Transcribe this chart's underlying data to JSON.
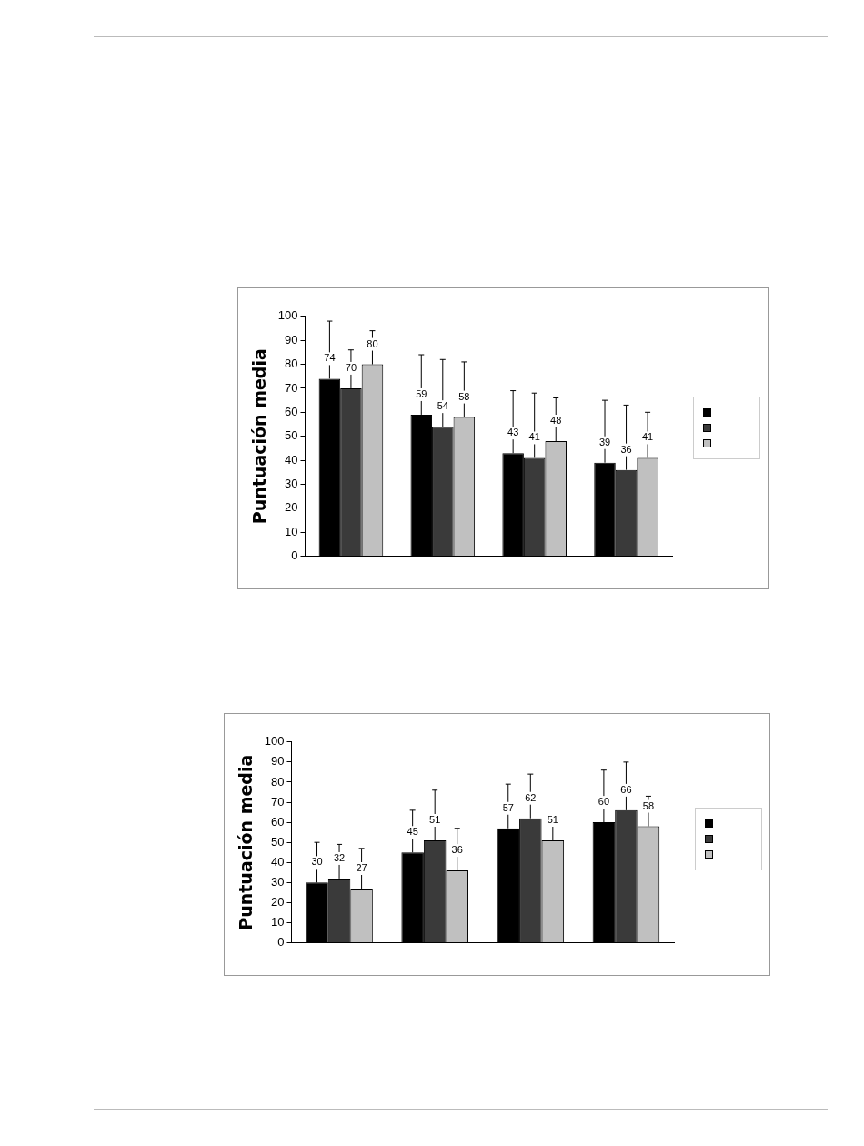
{
  "chart_data": [
    {
      "type": "bar",
      "ylabel": "Puntuación media",
      "categories": [
        null,
        null,
        null,
        null
      ],
      "ylim": [
        0,
        100
      ],
      "yticks": [
        0,
        10,
        20,
        30,
        40,
        50,
        60,
        70,
        80,
        90,
        100
      ],
      "grid": false,
      "data_labels": true,
      "series": [
        {
          "color": "#000000",
          "values": [
            74,
            59,
            43,
            39
          ],
          "errors": [
            [
              74,
              98
            ],
            [
              59,
              84
            ],
            [
              43,
              69
            ],
            [
              39,
              65
            ]
          ]
        },
        {
          "color": "#3a3a3a",
          "values": [
            70,
            54,
            41,
            36
          ],
          "errors": [
            [
              70,
              86
            ],
            [
              54,
              82
            ],
            [
              41,
              68
            ],
            [
              36,
              63
            ]
          ]
        },
        {
          "color": "#c0c0c0",
          "values": [
            80,
            58,
            48,
            41
          ],
          "errors": [
            [
              80,
              94
            ],
            [
              58,
              81
            ],
            [
              48,
              66
            ],
            [
              41,
              60
            ]
          ]
        }
      ]
    },
    {
      "type": "bar",
      "ylabel": "Puntuación media",
      "categories": [
        null,
        null,
        null,
        null
      ],
      "ylim": [
        0,
        100
      ],
      "yticks": [
        0,
        10,
        20,
        30,
        40,
        50,
        60,
        70,
        80,
        90,
        100
      ],
      "grid": false,
      "data_labels": true,
      "series": [
        {
          "color": "#000000",
          "values": [
            30,
            45,
            57,
            60
          ],
          "errors": [
            [
              30,
              50
            ],
            [
              45,
              66
            ],
            [
              57,
              79
            ],
            [
              60,
              86
            ]
          ]
        },
        {
          "color": "#3a3a3a",
          "values": [
            32,
            51,
            62,
            66
          ],
          "errors": [
            [
              32,
              49
            ],
            [
              51,
              76
            ],
            [
              62,
              84
            ],
            [
              66,
              90
            ]
          ]
        },
        {
          "color": "#c0c0c0",
          "values": [
            27,
            36,
            51,
            58
          ],
          "errors": [
            [
              27,
              47
            ],
            [
              36,
              57
            ],
            [
              51,
              63
            ],
            [
              58,
              73
            ]
          ]
        }
      ]
    }
  ]
}
